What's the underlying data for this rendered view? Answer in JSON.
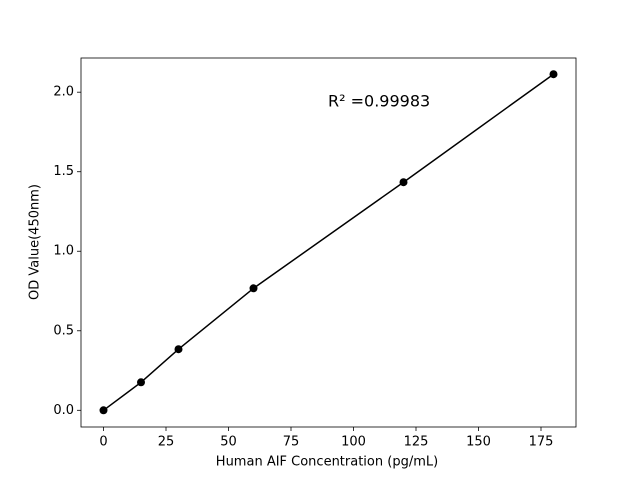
{
  "chart_data": {
    "type": "line",
    "xlabel": "Human AIF Concentration (pg/mL)",
    "ylabel": "OD Value(450nm)",
    "annotation": "R² =0.99983",
    "x": [
      0,
      15,
      30,
      60,
      120,
      180
    ],
    "series": [
      {
        "color": "#000000",
        "values": [
          0.0,
          0.176,
          0.384,
          0.767,
          1.434,
          2.113
        ]
      }
    ],
    "xlim": [
      -9,
      189
    ],
    "ylim": [
      -0.105,
      2.215
    ],
    "xticks": [
      0,
      25,
      50,
      75,
      100,
      125,
      150,
      175
    ],
    "yticks": [
      {
        "value": 0,
        "label": "0.0"
      },
      {
        "value": 0.5,
        "label": "0.5"
      },
      {
        "value": 1.0,
        "label": "1.0"
      },
      {
        "value": 1.5,
        "label": "1.5"
      },
      {
        "value": 2.0,
        "label": "2.0"
      }
    ],
    "grid": false
  }
}
